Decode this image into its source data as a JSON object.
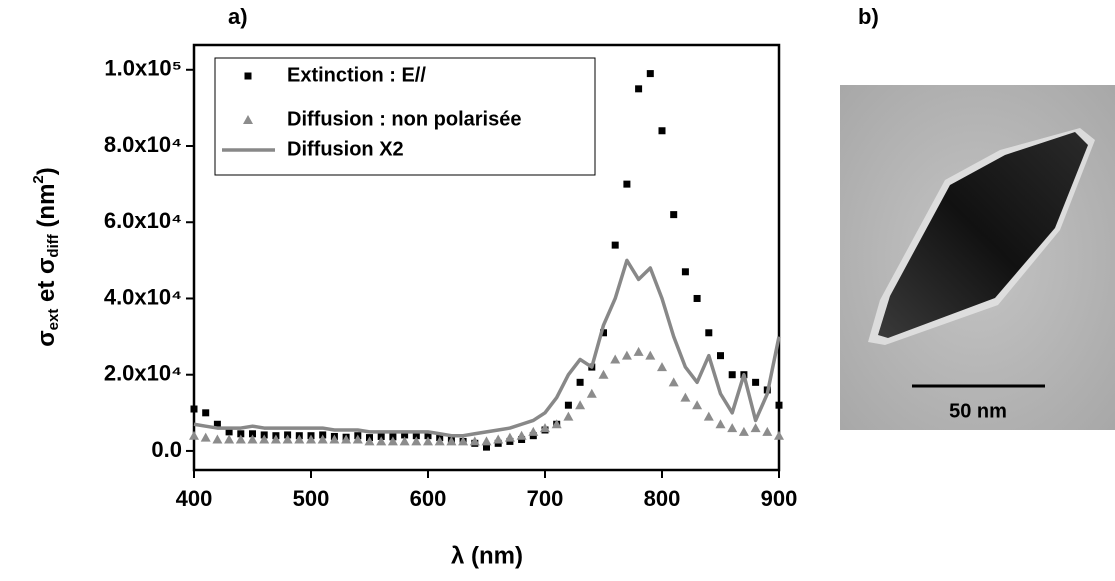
{
  "chart_data": {
    "type": "scatter",
    "panel_a": "a)",
    "panel_b": "b)",
    "x_label": "λ (nm)",
    "y_label_parts": [
      "σ",
      "ext",
      " et σ",
      "diff",
      " (nm",
      "2",
      ")"
    ],
    "scale_bar_label": "50 nm",
    "xlim": [
      400,
      900
    ],
    "ylim": [
      -5000,
      106500
    ],
    "xticks": [
      400,
      500,
      600,
      700,
      800,
      900
    ],
    "yticks": [
      {
        "value": 0,
        "label": "0.0"
      },
      {
        "value": 20000,
        "label": "2.0x10⁴"
      },
      {
        "value": 40000,
        "label": "4.0x10⁴"
      },
      {
        "value": 60000,
        "label": "6.0x10⁴"
      },
      {
        "value": 80000,
        "label": "8.0x10⁴"
      },
      {
        "value": 100000,
        "label": "1.0x10⁵"
      }
    ],
    "x": [
      400,
      410,
      420,
      430,
      440,
      450,
      460,
      470,
      480,
      490,
      500,
      510,
      520,
      530,
      540,
      550,
      560,
      570,
      580,
      590,
      600,
      610,
      620,
      630,
      640,
      650,
      660,
      670,
      680,
      690,
      700,
      710,
      720,
      730,
      740,
      750,
      760,
      770,
      780,
      790,
      800,
      810,
      820,
      830,
      840,
      850,
      860,
      870,
      880,
      890,
      900
    ],
    "series": [
      {
        "name": "Extinction : E//",
        "marker": "square",
        "color": "#000000",
        "values": [
          11000,
          10000,
          7000,
          5000,
          4500,
          4500,
          4200,
          4000,
          4200,
          4000,
          4000,
          4200,
          3800,
          3600,
          4000,
          3500,
          3800,
          3700,
          4200,
          4000,
          4000,
          3500,
          3000,
          2500,
          2000,
          1000,
          2000,
          2500,
          3000,
          4000,
          5500,
          7000,
          12000,
          18000,
          22000,
          31000,
          54000,
          70000,
          95000,
          99000,
          84000,
          62000,
          47000,
          40000,
          31000,
          25000,
          20000,
          20000,
          18000,
          16000,
          12000
        ]
      },
      {
        "name": "Diffusion : non polarisée",
        "marker": "triangle",
        "color": "#8c8c8c",
        "values": [
          4000,
          3500,
          3000,
          3000,
          3000,
          3000,
          3000,
          3000,
          3000,
          3000,
          3000,
          3000,
          3000,
          3000,
          3000,
          2500,
          2500,
          2500,
          2500,
          2500,
          2500,
          2500,
          2500,
          2500,
          2500,
          2500,
          3000,
          3500,
          4000,
          5000,
          6000,
          7000,
          9000,
          12000,
          15000,
          20000,
          24000,
          25000,
          26000,
          25000,
          22000,
          18000,
          14000,
          12000,
          9000,
          7000,
          6000,
          5000,
          6000,
          5000,
          4000
        ]
      },
      {
        "name": "Diffusion X2",
        "marker": "line",
        "color": "#888888",
        "values": [
          7000,
          6500,
          6000,
          6000,
          6000,
          6500,
          6000,
          6000,
          6000,
          6000,
          6000,
          6000,
          5500,
          5500,
          5500,
          5000,
          5000,
          5000,
          5000,
          5000,
          5000,
          4500,
          4000,
          4000,
          4500,
          5000,
          5500,
          6000,
          7000,
          8000,
          10000,
          14000,
          20000,
          24000,
          22000,
          33000,
          40000,
          50000,
          45000,
          48000,
          40000,
          30000,
          22000,
          18000,
          25000,
          15000,
          10000,
          20000,
          8000,
          15000,
          30000
        ]
      }
    ]
  }
}
